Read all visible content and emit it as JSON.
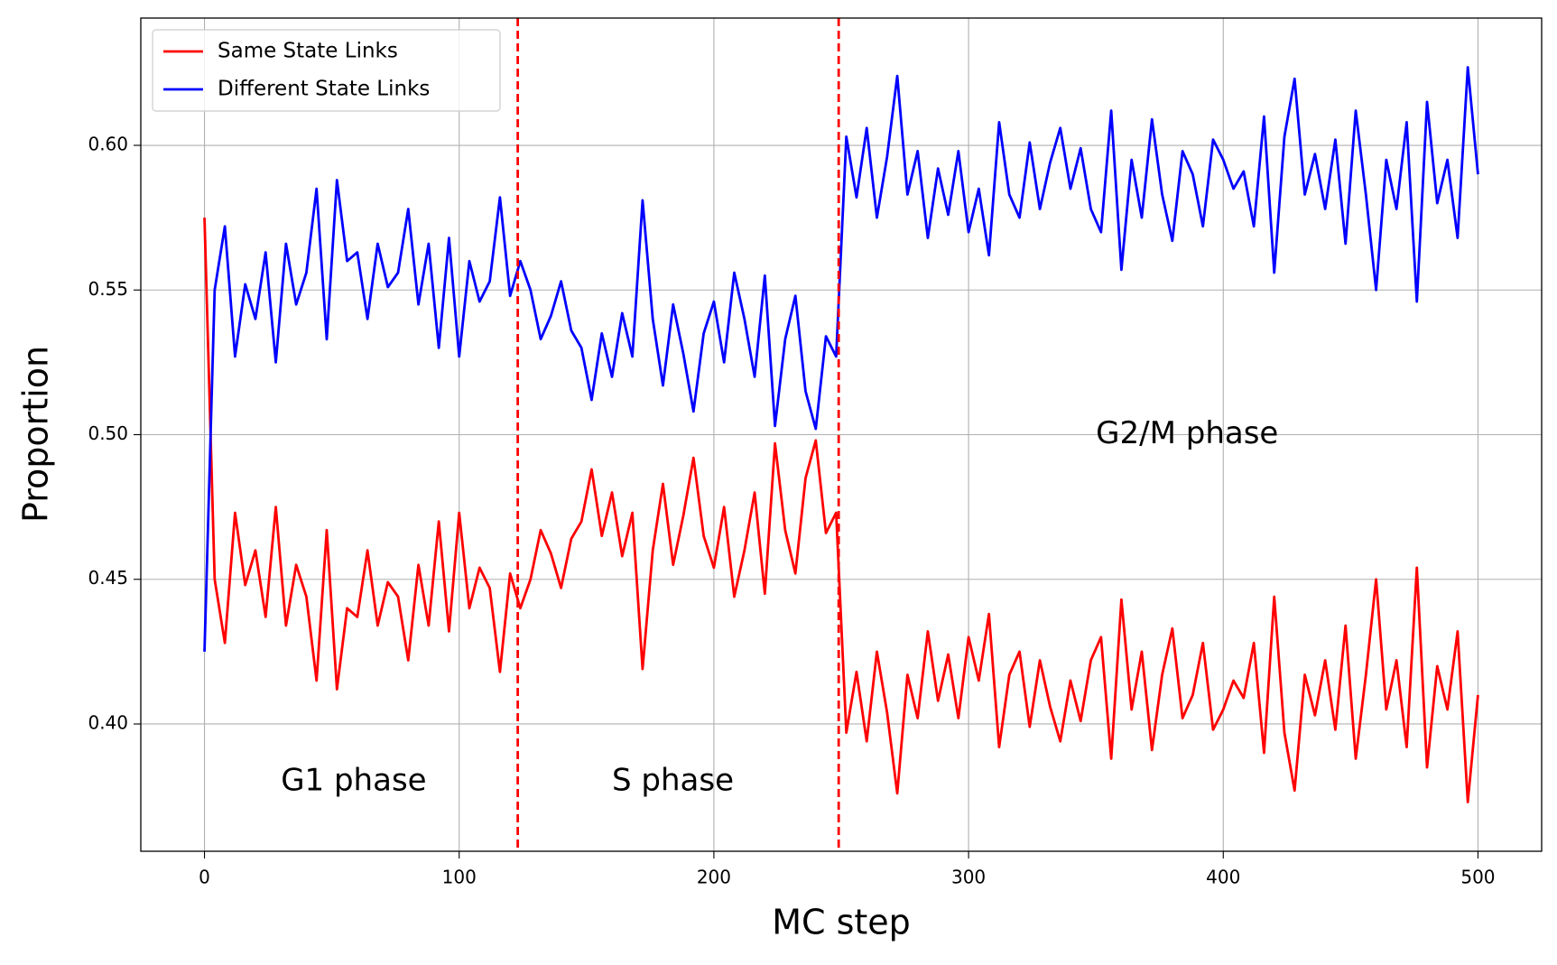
{
  "chart_data": {
    "type": "line",
    "xlabel": "MC step",
    "ylabel": "Proportion",
    "x": [
      0,
      4,
      8,
      12,
      16,
      20,
      24,
      28,
      32,
      36,
      40,
      44,
      48,
      52,
      56,
      60,
      64,
      68,
      72,
      76,
      80,
      84,
      88,
      92,
      96,
      100,
      104,
      108,
      112,
      116,
      120,
      124,
      128,
      132,
      136,
      140,
      144,
      148,
      152,
      156,
      160,
      164,
      168,
      172,
      176,
      180,
      184,
      188,
      192,
      196,
      200,
      204,
      208,
      212,
      216,
      220,
      224,
      228,
      232,
      236,
      240,
      244,
      248,
      252,
      256,
      260,
      264,
      268,
      272,
      276,
      280,
      284,
      288,
      292,
      296,
      300,
      304,
      308,
      312,
      316,
      320,
      324,
      328,
      332,
      336,
      340,
      344,
      348,
      352,
      356,
      360,
      364,
      368,
      372,
      376,
      380,
      384,
      388,
      392,
      396,
      400,
      404,
      408,
      412,
      416,
      420,
      424,
      428,
      432,
      436,
      440,
      444,
      448,
      452,
      456,
      460,
      464,
      468,
      472,
      476,
      480,
      484,
      488,
      492,
      496,
      500
    ],
    "series": [
      {
        "name": "Same State Links",
        "color": "#ff0000",
        "values": [
          0.575,
          0.45,
          0.428,
          0.473,
          0.448,
          0.46,
          0.437,
          0.475,
          0.434,
          0.455,
          0.444,
          0.415,
          0.467,
          0.412,
          0.44,
          0.437,
          0.46,
          0.434,
          0.449,
          0.444,
          0.422,
          0.455,
          0.434,
          0.47,
          0.432,
          0.473,
          0.44,
          0.454,
          0.447,
          0.418,
          0.452,
          0.44,
          0.45,
          0.467,
          0.459,
          0.447,
          0.464,
          0.47,
          0.488,
          0.465,
          0.48,
          0.458,
          0.473,
          0.419,
          0.46,
          0.483,
          0.455,
          0.472,
          0.492,
          0.465,
          0.454,
          0.475,
          0.444,
          0.46,
          0.48,
          0.445,
          0.497,
          0.467,
          0.452,
          0.485,
          0.498,
          0.466,
          0.473,
          0.397,
          0.418,
          0.394,
          0.425,
          0.404,
          0.376,
          0.417,
          0.402,
          0.432,
          0.408,
          0.424,
          0.402,
          0.43,
          0.415,
          0.438,
          0.392,
          0.417,
          0.425,
          0.399,
          0.422,
          0.406,
          0.394,
          0.415,
          0.401,
          0.422,
          0.43,
          0.388,
          0.443,
          0.405,
          0.425,
          0.391,
          0.417,
          0.433,
          0.402,
          0.41,
          0.428,
          0.398,
          0.405,
          0.415,
          0.409,
          0.428,
          0.39,
          0.444,
          0.397,
          0.377,
          0.417,
          0.403,
          0.422,
          0.398,
          0.434,
          0.388,
          0.417,
          0.45,
          0.405,
          0.422,
          0.392,
          0.454,
          0.385,
          0.42,
          0.405,
          0.432,
          0.373,
          0.41
        ]
      },
      {
        "name": "Different State Links",
        "color": "#0000ff",
        "values": [
          0.425,
          0.55,
          0.572,
          0.527,
          0.552,
          0.54,
          0.563,
          0.525,
          0.566,
          0.545,
          0.556,
          0.585,
          0.533,
          0.588,
          0.56,
          0.563,
          0.54,
          0.566,
          0.551,
          0.556,
          0.578,
          0.545,
          0.566,
          0.53,
          0.568,
          0.527,
          0.56,
          0.546,
          0.553,
          0.582,
          0.548,
          0.56,
          0.55,
          0.533,
          0.541,
          0.553,
          0.536,
          0.53,
          0.512,
          0.535,
          0.52,
          0.542,
          0.527,
          0.581,
          0.54,
          0.517,
          0.545,
          0.528,
          0.508,
          0.535,
          0.546,
          0.525,
          0.556,
          0.54,
          0.52,
          0.555,
          0.503,
          0.533,
          0.548,
          0.515,
          0.502,
          0.534,
          0.527,
          0.603,
          0.582,
          0.606,
          0.575,
          0.596,
          0.624,
          0.583,
          0.598,
          0.568,
          0.592,
          0.576,
          0.598,
          0.57,
          0.585,
          0.562,
          0.608,
          0.583,
          0.575,
          0.601,
          0.578,
          0.594,
          0.606,
          0.585,
          0.599,
          0.578,
          0.57,
          0.612,
          0.557,
          0.595,
          0.575,
          0.609,
          0.583,
          0.567,
          0.598,
          0.59,
          0.572,
          0.602,
          0.595,
          0.585,
          0.591,
          0.572,
          0.61,
          0.556,
          0.603,
          0.623,
          0.583,
          0.597,
          0.578,
          0.602,
          0.566,
          0.612,
          0.583,
          0.55,
          0.595,
          0.578,
          0.608,
          0.546,
          0.615,
          0.58,
          0.595,
          0.568,
          0.627,
          0.59
        ]
      }
    ],
    "xlim": [
      -25,
      525
    ],
    "ylim": [
      0.356,
      0.644
    ],
    "xticks": [
      0,
      100,
      200,
      300,
      400,
      500
    ],
    "yticks": [
      {
        "value": 0.4,
        "label": "0.40"
      },
      0.45,
      {
        "value": 0.5,
        "label": "0.50"
      },
      0.55,
      {
        "value": 0.6,
        "label": "0.60"
      }
    ],
    "grid": true,
    "legend": "upper left",
    "vlines": [
      123,
      249
    ],
    "vline_color": "#ff0000",
    "annotations": [
      {
        "text": "G1 phase",
        "x": 30,
        "y": 0.38
      },
      {
        "text": "S phase",
        "x": 160,
        "y": 0.38
      },
      {
        "text": "G2/M phase",
        "x": 350,
        "y": 0.5
      }
    ]
  }
}
